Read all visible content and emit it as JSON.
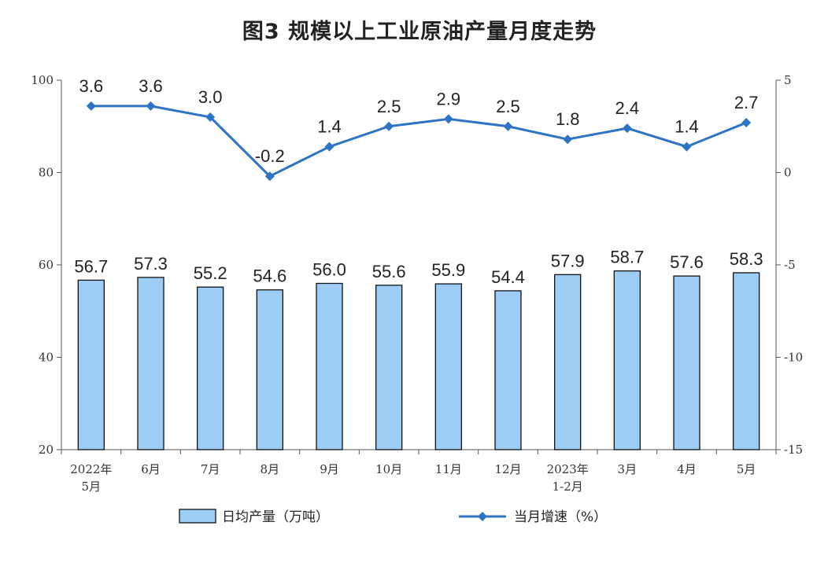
{
  "chart_data": {
    "type": "bar+line",
    "title": "图3  规模以上工业原油产量月度走势",
    "categories": [
      [
        "2022年",
        "5月"
      ],
      [
        "6月"
      ],
      [
        "7月"
      ],
      [
        "8月"
      ],
      [
        "9月"
      ],
      [
        "10月"
      ],
      [
        "11月"
      ],
      [
        "12月"
      ],
      [
        "2023年",
        "1-2月"
      ],
      [
        "3月"
      ],
      [
        "4月"
      ],
      [
        "5月"
      ]
    ],
    "series": [
      {
        "name": "日均产量（万吨）",
        "type": "bar",
        "axis": "left",
        "color": "#9DCDF5",
        "values": [
          56.7,
          57.3,
          55.2,
          54.6,
          56.0,
          55.6,
          55.9,
          54.4,
          57.9,
          58.7,
          57.6,
          58.3
        ],
        "labels": [
          "56.7",
          "57.3",
          "55.2",
          "54.6",
          "56.0",
          "55.6",
          "55.9",
          "54.4",
          "57.9",
          "58.7",
          "57.6",
          "58.3"
        ]
      },
      {
        "name": "当月增速（%）",
        "type": "line",
        "axis": "right",
        "color": "#2F73C4",
        "values": [
          3.6,
          3.6,
          3.0,
          -0.2,
          1.4,
          2.5,
          2.9,
          2.5,
          1.8,
          2.4,
          1.4,
          2.7
        ],
        "labels": [
          "3.6",
          "3.6",
          "3.0",
          "-0.2",
          "1.4",
          "2.5",
          "2.9",
          "2.5",
          "1.8",
          "2.4",
          "1.4",
          "2.7"
        ]
      }
    ],
    "y_left": {
      "min": 20,
      "max": 100,
      "ticks": [
        20,
        40,
        60,
        80,
        100
      ]
    },
    "y_right": {
      "min": -15,
      "max": 5,
      "ticks": [
        -15,
        -10,
        -5,
        0,
        5
      ]
    },
    "grid": false,
    "legend": "bottom"
  }
}
